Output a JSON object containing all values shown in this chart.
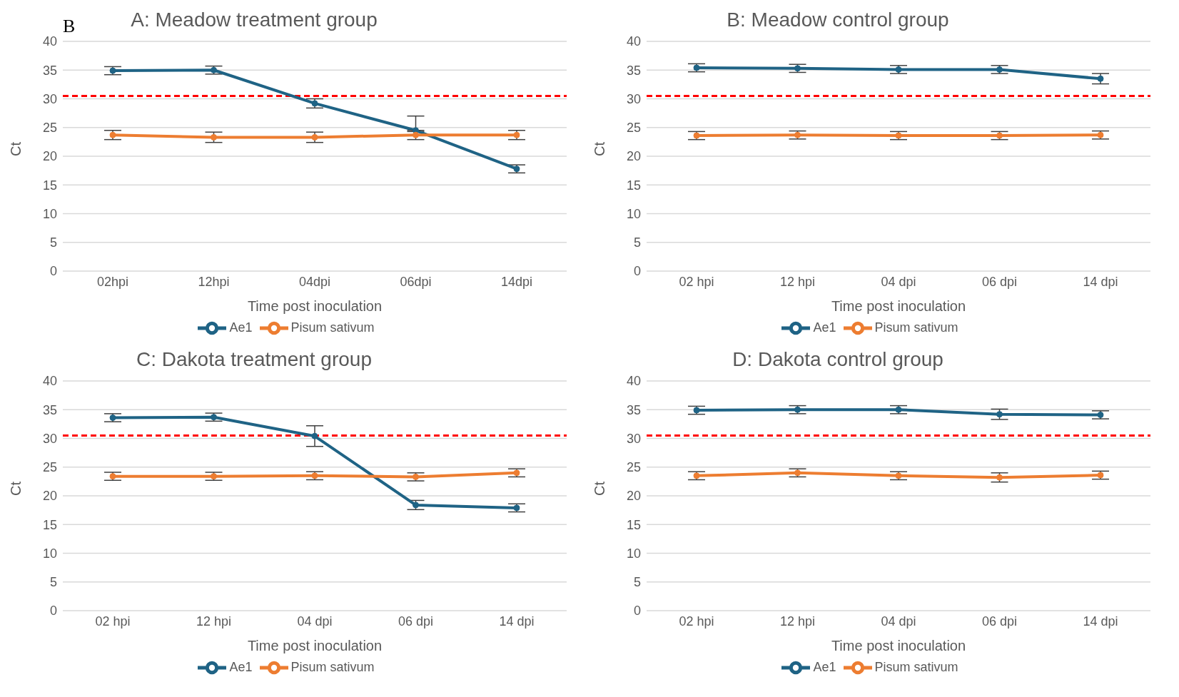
{
  "chart_data": [
    {
      "type": "line",
      "title": "A: Meadow treatment group",
      "xlabel": "Time post inoculation",
      "ylabel": "Ct",
      "annotations": [
        "B"
      ],
      "categories": [
        "02hpi",
        "12hpi",
        "04dpi",
        "06dpi",
        "14dpi"
      ],
      "series": [
        {
          "name": "Ae1",
          "color": "#1f6385",
          "values": [
            34.9,
            35.0,
            29.2,
            24.5,
            17.8
          ],
          "errors": [
            0.7,
            0.7,
            0.8,
            [
              24.3,
              27.0
            ],
            0.7
          ]
        },
        {
          "name": "Pisum sativum",
          "color": "#ed7d31",
          "values": [
            23.7,
            23.3,
            23.3,
            23.7,
            23.7
          ],
          "errors": [
            0.8,
            0.9,
            0.9,
            0.8,
            0.8
          ]
        }
      ],
      "ylim": [
        0,
        40
      ],
      "yticks": [
        0,
        5,
        10,
        15,
        20,
        25,
        30,
        35,
        40
      ],
      "grid": "y",
      "legend": "bottom",
      "marker": "circle",
      "line_style": "solid",
      "ref_lines": [
        {
          "axis": "y",
          "value": 30.5,
          "color": "#ff0000",
          "line_style": "dashed"
        }
      ]
    },
    {
      "type": "line",
      "title": "B: Meadow control group",
      "xlabel": "Time post inoculation",
      "ylabel": "Ct",
      "categories": [
        "02 hpi",
        "12 hpi",
        "04 dpi",
        "06 dpi",
        "14 dpi"
      ],
      "series": [
        {
          "name": "Ae1",
          "color": "#1f6385",
          "values": [
            35.4,
            35.3,
            35.1,
            35.1,
            33.5
          ],
          "errors": [
            0.7,
            0.7,
            0.7,
            0.7,
            0.9
          ]
        },
        {
          "name": "Pisum sativum",
          "color": "#ed7d31",
          "values": [
            23.6,
            23.7,
            23.6,
            23.6,
            23.7
          ],
          "errors": [
            0.7,
            0.7,
            0.7,
            0.7,
            0.7
          ]
        }
      ],
      "ylim": [
        0,
        40
      ],
      "yticks": [
        0,
        5,
        10,
        15,
        20,
        25,
        30,
        35,
        40
      ],
      "grid": "y",
      "legend": "bottom",
      "marker": "circle",
      "line_style": "solid",
      "ref_lines": [
        {
          "axis": "y",
          "value": 30.5,
          "color": "#ff0000",
          "line_style": "dashed"
        }
      ]
    },
    {
      "type": "line",
      "title": "C: Dakota treatment group",
      "xlabel": "Time post inoculation",
      "ylabel": "Ct",
      "categories": [
        "02 hpi",
        "12 hpi",
        "04 dpi",
        "06 dpi",
        "14 dpi"
      ],
      "series": [
        {
          "name": "Ae1",
          "color": "#1f6385",
          "values": [
            33.6,
            33.7,
            30.4,
            18.4,
            17.9
          ],
          "errors": [
            0.7,
            0.7,
            1.8,
            0.8,
            0.7
          ]
        },
        {
          "name": "Pisum sativum",
          "color": "#ed7d31",
          "values": [
            23.4,
            23.4,
            23.5,
            23.3,
            24.0
          ],
          "errors": [
            0.7,
            0.7,
            0.7,
            0.7,
            0.7
          ]
        }
      ],
      "ylim": [
        0,
        40
      ],
      "yticks": [
        0,
        5,
        10,
        15,
        20,
        25,
        30,
        35,
        40
      ],
      "grid": "y",
      "legend": "bottom",
      "marker": "circle",
      "line_style": "solid",
      "ref_lines": [
        {
          "axis": "y",
          "value": 30.5,
          "color": "#ff0000",
          "line_style": "dashed"
        }
      ]
    },
    {
      "type": "line",
      "title": "D: Dakota control group",
      "xlabel": "Time post inoculation",
      "ylabel": "Ct",
      "categories": [
        "02 hpi",
        "12 hpi",
        "04 dpi",
        "06 dpi",
        "14 dpi"
      ],
      "series": [
        {
          "name": "Ae1",
          "color": "#1f6385",
          "values": [
            34.9,
            35.0,
            35.0,
            34.2,
            34.1
          ],
          "errors": [
            0.7,
            0.7,
            0.7,
            0.9,
            0.7
          ]
        },
        {
          "name": "Pisum sativum",
          "color": "#ed7d31",
          "values": [
            23.5,
            24.0,
            23.5,
            23.2,
            23.6
          ],
          "errors": [
            0.7,
            0.7,
            0.7,
            0.8,
            0.7
          ]
        }
      ],
      "ylim": [
        0,
        40
      ],
      "yticks": [
        0,
        5,
        10,
        15,
        20,
        25,
        30,
        35,
        40
      ],
      "grid": "y",
      "legend": "bottom",
      "marker": "circle",
      "line_style": "solid",
      "ref_lines": [
        {
          "axis": "y",
          "value": 30.5,
          "color": "#ff0000",
          "line_style": "dashed"
        }
      ]
    }
  ]
}
